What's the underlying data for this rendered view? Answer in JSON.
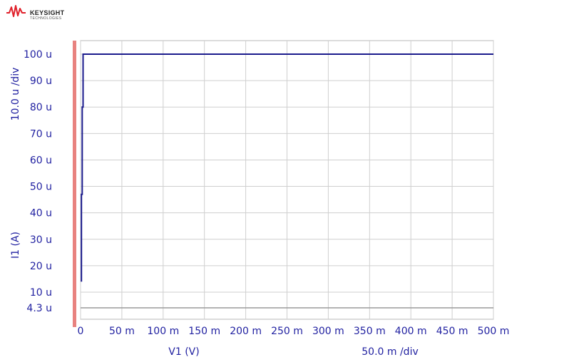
{
  "brand": {
    "name": "KEYSIGHT",
    "subtitle": "TECHNOLOGIES"
  },
  "colors": {
    "trace": "#1a1a8c",
    "axis_text": "#1f1fa0",
    "grid": "#cfcfcf",
    "marker_bar": "#e8827f"
  },
  "chart_data": {
    "type": "line",
    "title": "",
    "xlabel": "V1 (V)",
    "ylabel": "I1 (A)",
    "x_scale_text": "50.0 m /div",
    "y_scale_text": "10.0 u /div",
    "xlim": [
      0,
      500
    ],
    "x_unit": "mV",
    "ylim": [
      4.3,
      105
    ],
    "y_unit": "uA",
    "x_ticks": [
      {
        "value": 0,
        "label": "0"
      },
      {
        "value": 50,
        "label": "50 m"
      },
      {
        "value": 100,
        "label": "100 m"
      },
      {
        "value": 150,
        "label": "150 m"
      },
      {
        "value": 200,
        "label": "200 m"
      },
      {
        "value": 250,
        "label": "250 m"
      },
      {
        "value": 300,
        "label": "300 m"
      },
      {
        "value": 350,
        "label": "350 m"
      },
      {
        "value": 400,
        "label": "400 m"
      },
      {
        "value": 450,
        "label": "450 m"
      },
      {
        "value": 500,
        "label": "500 m"
      }
    ],
    "y_ticks": [
      {
        "value": 100,
        "label": "100 u"
      },
      {
        "value": 90,
        "label": "90 u"
      },
      {
        "value": 80,
        "label": "80 u"
      },
      {
        "value": 70,
        "label": "70 u"
      },
      {
        "value": 60,
        "label": "60 u"
      },
      {
        "value": 50,
        "label": "50 u"
      },
      {
        "value": 40,
        "label": "40 u"
      },
      {
        "value": 30,
        "label": "30 u"
      },
      {
        "value": 20,
        "label": "20 u"
      },
      {
        "value": 10,
        "label": "10 u"
      },
      {
        "value": 4.3,
        "label": "4.3 u"
      }
    ],
    "grid": true,
    "series": [
      {
        "x": [
          1,
          1,
          2,
          2,
          3,
          3,
          4,
          500
        ],
        "y": [
          14,
          47,
          47,
          80,
          80,
          100,
          100,
          100
        ]
      }
    ]
  }
}
